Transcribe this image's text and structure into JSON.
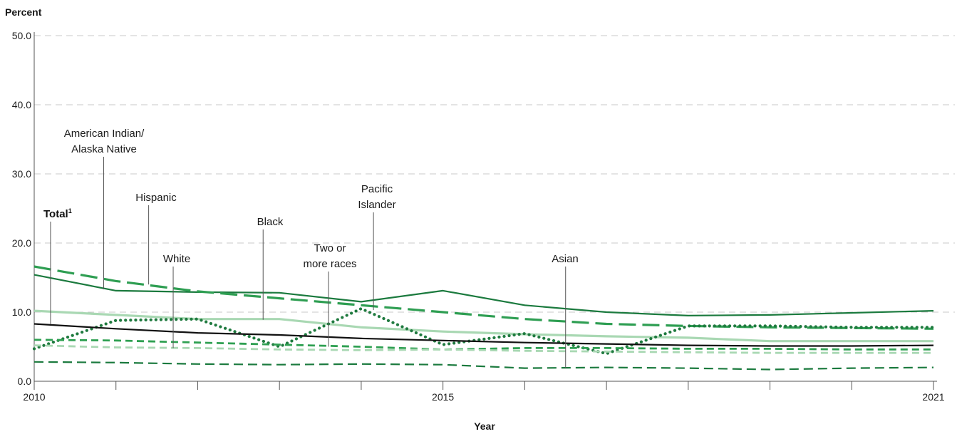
{
  "chart_data": {
    "type": "line",
    "ylabel": "Percent",
    "xlabel": "Year",
    "ylim": [
      0,
      50
    ],
    "yticks": [
      "0.0",
      "10.0",
      "20.0",
      "30.0",
      "40.0",
      "50.0"
    ],
    "xlim": [
      2010,
      2021
    ],
    "xticks": [
      "2010",
      "2015",
      "2021"
    ],
    "grid": true,
    "x": [
      2010,
      2011,
      2012,
      2013,
      2014,
      2015,
      2016,
      2017,
      2018,
      2019,
      2020,
      2021
    ],
    "series": [
      {
        "name": "American Indian/ Alaska Native",
        "color": "#1b7a3e",
        "style": "solid",
        "values": [
          15.4,
          13.1,
          12.9,
          12.8,
          11.5,
          13.1,
          11.0,
          10.0,
          9.5,
          9.6,
          9.9,
          10.2
        ]
      },
      {
        "name": "Hispanic",
        "color": "#2e9e52",
        "style": "longdash",
        "values": [
          16.6,
          14.5,
          13.0,
          12.0,
          11.0,
          10.0,
          9.0,
          8.3,
          8.0,
          7.8,
          7.7,
          7.6
        ]
      },
      {
        "name": "White",
        "color": "#a9d8b3",
        "style": "solid",
        "values": [
          10.2,
          9.6,
          9.0,
          9.0,
          7.8,
          7.2,
          6.8,
          6.5,
          6.3,
          5.8,
          5.8,
          5.8
        ]
      },
      {
        "name": "Pacific Islander",
        "color": "#1f7a3f",
        "style": "dotted",
        "values": [
          4.7,
          8.8,
          9.0,
          5.0,
          10.5,
          5.3,
          6.9,
          4.0,
          8.0,
          8.0,
          7.8,
          7.8
        ]
      },
      {
        "name": "Total",
        "color": "#111111",
        "style": "solid",
        "values": [
          8.3,
          7.6,
          7.0,
          6.7,
          6.2,
          5.9,
          5.6,
          5.4,
          5.2,
          5.1,
          5.1,
          5.2
        ]
      },
      {
        "name": "Black",
        "color": "#2fa052",
        "style": "dashed",
        "values": [
          6.0,
          5.9,
          5.6,
          5.3,
          5.0,
          4.6,
          4.8,
          4.8,
          4.7,
          4.7,
          4.6,
          4.6
        ]
      },
      {
        "name": "Two or more races",
        "color": "#a9d8b3",
        "style": "dashed",
        "values": [
          5.2,
          4.9,
          4.8,
          4.6,
          4.5,
          4.6,
          4.4,
          4.3,
          4.2,
          4.1,
          4.1,
          4.1
        ]
      },
      {
        "name": "Asian",
        "color": "#1b7a3e",
        "style": "shortdash",
        "values": [
          2.8,
          2.7,
          2.5,
          2.4,
          2.5,
          2.4,
          1.9,
          2.0,
          1.9,
          1.7,
          1.9,
          2.0
        ]
      }
    ],
    "annotations": [
      {
        "text": [
          "Total",
          "1"
        ],
        "year": 2010.2,
        "value": 8.3
      },
      {
        "text": [
          "American Indian/",
          "Alaska Native"
        ],
        "year": 2010.85,
        "value": 13.3
      },
      {
        "text": [
          "Hispanic"
        ],
        "year": 2011.4,
        "value": 14.0
      },
      {
        "text": [
          "White"
        ],
        "year": 2011.7,
        "value": 4.8
      },
      {
        "text": [
          "Black"
        ],
        "year": 2012.8,
        "value": 8.9
      },
      {
        "text": [
          "Two or",
          "more races"
        ],
        "year": 2013.6,
        "value": 5.0
      },
      {
        "text": [
          "Pacific",
          "Islander"
        ],
        "year": 2014.15,
        "value": 10.3
      },
      {
        "text": [
          "Asian"
        ],
        "year": 2016.5,
        "value": 1.9
      }
    ]
  }
}
